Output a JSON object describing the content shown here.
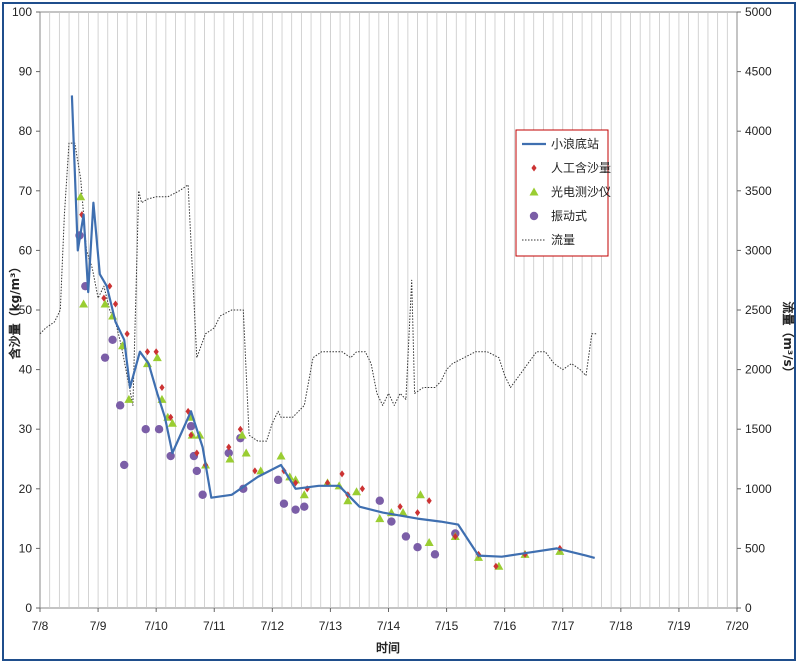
{
  "chart_data": {
    "type": "line",
    "xlabel": "时间",
    "ylabel": "含沙量（kg/m³）",
    "y2label": "流量（m³/s）",
    "xlim": [
      0,
      12
    ],
    "ylim": [
      0,
      100
    ],
    "y2lim": [
      0,
      5000
    ],
    "x_ticks": [
      {
        "x": 0,
        "label": "7/8"
      },
      {
        "x": 1,
        "label": "7/9"
      },
      {
        "x": 2,
        "label": "7/10"
      },
      {
        "x": 3,
        "label": "7/11"
      },
      {
        "x": 4,
        "label": "7/12"
      },
      {
        "x": 5,
        "label": "7/13"
      },
      {
        "x": 6,
        "label": "7/14"
      },
      {
        "x": 7,
        "label": "7/15"
      },
      {
        "x": 8,
        "label": "7/16"
      },
      {
        "x": 9,
        "label": "7/17"
      },
      {
        "x": 10,
        "label": "7/18"
      },
      {
        "x": 11,
        "label": "7/19"
      },
      {
        "x": 12,
        "label": "7/20"
      }
    ],
    "y_ticks": [
      "0",
      "10",
      "20",
      "30",
      "40",
      "50",
      "60",
      "70",
      "80",
      "90",
      "100"
    ],
    "y2_ticks": [
      "0",
      "500",
      "1000",
      "1500",
      "2000",
      "2500",
      "3000",
      "3500",
      "4000",
      "4500",
      "5000"
    ],
    "grid": "vertical",
    "legend_position": "right",
    "series": [
      {
        "name": "小浪底站",
        "kind": "line",
        "axis": "left",
        "color": "#3f6fb0",
        "points": [
          [
            0.55,
            86
          ],
          [
            0.65,
            60
          ],
          [
            0.75,
            66
          ],
          [
            0.83,
            53
          ],
          [
            0.92,
            68
          ],
          [
            1.03,
            56
          ],
          [
            1.15,
            54
          ],
          [
            1.3,
            48
          ],
          [
            1.45,
            45
          ],
          [
            1.55,
            37
          ],
          [
            1.72,
            43
          ],
          [
            1.87,
            41
          ],
          [
            2.02,
            36
          ],
          [
            2.15,
            32
          ],
          [
            2.28,
            26
          ],
          [
            2.6,
            33
          ],
          [
            2.8,
            27
          ],
          [
            2.95,
            18.5
          ],
          [
            3.3,
            19
          ],
          [
            3.75,
            22
          ],
          [
            4.15,
            24
          ],
          [
            4.4,
            20
          ],
          [
            4.8,
            20.5
          ],
          [
            5.15,
            20.5
          ],
          [
            5.5,
            17
          ],
          [
            5.9,
            16
          ],
          [
            6.2,
            15.5
          ],
          [
            6.5,
            15
          ],
          [
            6.9,
            14.5
          ],
          [
            7.2,
            14
          ],
          [
            7.55,
            8.8
          ],
          [
            7.95,
            8.6
          ],
          [
            8.35,
            9.2
          ],
          [
            8.9,
            10
          ],
          [
            9.4,
            8.8
          ],
          [
            9.55,
            8.4
          ]
        ]
      },
      {
        "name": "人工含沙量",
        "kind": "diamond",
        "axis": "left",
        "color": "#cc3333",
        "points": [
          [
            0.72,
            66
          ],
          [
            1.1,
            52
          ],
          [
            1.2,
            54
          ],
          [
            1.3,
            51
          ],
          [
            1.5,
            46
          ],
          [
            1.85,
            43
          ],
          [
            2.0,
            43
          ],
          [
            2.1,
            37
          ],
          [
            2.25,
            32
          ],
          [
            2.55,
            33
          ],
          [
            2.6,
            29
          ],
          [
            2.7,
            26
          ],
          [
            2.85,
            24
          ],
          [
            3.25,
            27
          ],
          [
            3.45,
            30
          ],
          [
            3.7,
            23
          ],
          [
            4.2,
            23
          ],
          [
            4.4,
            21
          ],
          [
            4.6,
            20
          ],
          [
            4.95,
            21
          ],
          [
            5.2,
            22.5
          ],
          [
            5.3,
            19
          ],
          [
            5.55,
            20
          ],
          [
            6.2,
            17
          ],
          [
            6.5,
            16
          ],
          [
            6.7,
            18
          ],
          [
            7.15,
            12
          ],
          [
            7.55,
            9
          ],
          [
            7.85,
            7
          ],
          [
            8.35,
            9
          ],
          [
            8.95,
            10
          ]
        ]
      },
      {
        "name": "光电测沙仪",
        "kind": "triangle",
        "axis": "left",
        "color": "#9acd32",
        "points": [
          [
            0.7,
            69
          ],
          [
            0.75,
            51
          ],
          [
            1.12,
            51
          ],
          [
            1.25,
            49
          ],
          [
            1.42,
            44
          ],
          [
            1.53,
            35
          ],
          [
            1.85,
            41
          ],
          [
            2.02,
            42
          ],
          [
            2.1,
            35
          ],
          [
            2.2,
            32
          ],
          [
            2.28,
            31
          ],
          [
            2.6,
            32
          ],
          [
            2.62,
            29
          ],
          [
            2.75,
            29
          ],
          [
            2.85,
            24
          ],
          [
            3.27,
            25
          ],
          [
            3.48,
            29
          ],
          [
            3.55,
            26
          ],
          [
            3.8,
            23
          ],
          [
            4.15,
            25.5
          ],
          [
            4.3,
            22
          ],
          [
            4.4,
            21.5
          ],
          [
            4.55,
            19
          ],
          [
            4.95,
            21
          ],
          [
            5.15,
            20.5
          ],
          [
            5.3,
            18
          ],
          [
            5.45,
            19.5
          ],
          [
            5.85,
            15
          ],
          [
            6.05,
            16
          ],
          [
            6.25,
            16
          ],
          [
            6.55,
            19
          ],
          [
            6.7,
            11
          ],
          [
            7.15,
            12
          ],
          [
            7.55,
            8.5
          ],
          [
            7.9,
            7
          ],
          [
            8.35,
            9
          ],
          [
            8.95,
            9.5
          ]
        ]
      },
      {
        "name": "振动式",
        "kind": "circle",
        "axis": "left",
        "color": "#7b5ea7",
        "points": [
          [
            0.68,
            62.5
          ],
          [
            0.78,
            54
          ],
          [
            1.12,
            42
          ],
          [
            1.25,
            45
          ],
          [
            1.38,
            34
          ],
          [
            1.45,
            24
          ],
          [
            1.82,
            30
          ],
          [
            2.05,
            30
          ],
          [
            2.25,
            25.5
          ],
          [
            2.6,
            30.5
          ],
          [
            2.65,
            25.5
          ],
          [
            2.7,
            23
          ],
          [
            2.8,
            19
          ],
          [
            3.25,
            26
          ],
          [
            3.45,
            28.5
          ],
          [
            3.5,
            20
          ],
          [
            4.1,
            21.5
          ],
          [
            4.2,
            17.5
          ],
          [
            4.4,
            16.5
          ],
          [
            4.55,
            17
          ],
          [
            5.85,
            18
          ],
          [
            6.05,
            14.5
          ],
          [
            6.3,
            12
          ],
          [
            6.5,
            10.2
          ],
          [
            6.8,
            9
          ],
          [
            7.15,
            12.5
          ]
        ]
      },
      {
        "name": "流量",
        "kind": "dotted-line",
        "axis": "right",
        "color": "#333333",
        "points": [
          [
            0,
            2300
          ],
          [
            0.1,
            2350
          ],
          [
            0.25,
            2400
          ],
          [
            0.35,
            2500
          ],
          [
            0.42,
            3300
          ],
          [
            0.5,
            3900
          ],
          [
            0.6,
            3900
          ],
          [
            0.7,
            3600
          ],
          [
            0.8,
            3000
          ],
          [
            0.9,
            2850
          ],
          [
            1.0,
            2600
          ],
          [
            1.1,
            2700
          ],
          [
            1.2,
            2500
          ],
          [
            1.3,
            2400
          ],
          [
            1.4,
            2200
          ],
          [
            1.5,
            1950
          ],
          [
            1.6,
            1700
          ],
          [
            1.7,
            3500
          ],
          [
            1.75,
            3400
          ],
          [
            1.85,
            3430
          ],
          [
            2.0,
            3450
          ],
          [
            2.2,
            3450
          ],
          [
            2.4,
            3500
          ],
          [
            2.55,
            3550
          ],
          [
            2.7,
            2100
          ],
          [
            2.85,
            2300
          ],
          [
            3.0,
            2350
          ],
          [
            3.1,
            2450
          ],
          [
            3.3,
            2500
          ],
          [
            3.5,
            2500
          ],
          [
            3.6,
            1450
          ],
          [
            3.75,
            1400
          ],
          [
            3.9,
            1400
          ],
          [
            4.0,
            1550
          ],
          [
            4.1,
            1650
          ],
          [
            4.15,
            1600
          ],
          [
            4.35,
            1600
          ],
          [
            4.55,
            1700
          ],
          [
            4.7,
            2100
          ],
          [
            4.85,
            2150
          ],
          [
            5.0,
            2150
          ],
          [
            5.2,
            2150
          ],
          [
            5.35,
            2100
          ],
          [
            5.45,
            2150
          ],
          [
            5.6,
            2150
          ],
          [
            5.7,
            2050
          ],
          [
            5.8,
            1800
          ],
          [
            5.9,
            1700
          ],
          [
            6.0,
            1800
          ],
          [
            6.1,
            1700
          ],
          [
            6.2,
            1800
          ],
          [
            6.3,
            1750
          ],
          [
            6.4,
            2750
          ],
          [
            6.45,
            1800
          ],
          [
            6.6,
            1850
          ],
          [
            6.8,
            1850
          ],
          [
            6.9,
            1900
          ],
          [
            7.0,
            2000
          ],
          [
            7.1,
            2050
          ],
          [
            7.3,
            2100
          ],
          [
            7.5,
            2150
          ],
          [
            7.7,
            2150
          ],
          [
            7.9,
            2100
          ],
          [
            8.0,
            1950
          ],
          [
            8.1,
            1850
          ],
          [
            8.25,
            1950
          ],
          [
            8.4,
            2050
          ],
          [
            8.55,
            2150
          ],
          [
            8.7,
            2150
          ],
          [
            8.85,
            2050
          ],
          [
            9.0,
            2000
          ],
          [
            9.15,
            2050
          ],
          [
            9.3,
            2000
          ],
          [
            9.4,
            1950
          ],
          [
            9.5,
            2300
          ],
          [
            9.6,
            2300
          ]
        ]
      }
    ]
  }
}
